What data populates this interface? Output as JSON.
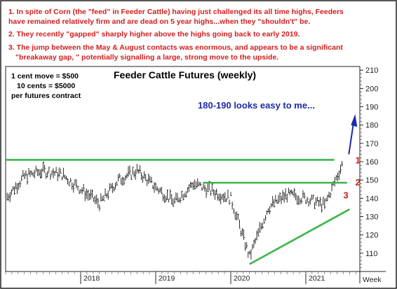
{
  "notes": [
    "1. In spite of Corn (the \"feed\" in Feeder Cattle) having just challenged its all time highs, Feeders",
    "have remained relatively firm and are dead on 5 year highs...when they \"shouldn't\" be.",
    "2. They recently \"gapped\" sharply higher above the highs going back to early 2019.",
    "3. The jump between the May & August contacts was enormous, and appears to be a significant",
    "\"breakaway gap, \" potentially signalling a large, strong move to the upside."
  ],
  "contract_info": [
    "1 cent move = $500",
    "10 cents = $5000",
    "per futures contract"
  ],
  "colors": {
    "note_text": "#d41c1c",
    "annotation_blue": "#1a2aa8",
    "trendline_green": "#3cb54a",
    "marker_red": "#c81e1e",
    "frame": "#222222"
  },
  "chart_data": {
    "type": "line",
    "title": "Feeder Cattle Futures (weekly)",
    "x_tick_labels": [
      "2018",
      "2019",
      "2020",
      "2021"
    ],
    "x_unit_label": "Week",
    "y_ticks": [
      110,
      120,
      130,
      140,
      150,
      160,
      170,
      180,
      190,
      200,
      210
    ],
    "ylim": [
      100,
      212
    ],
    "grid": false,
    "series": [
      {
        "x": [
          "2017-01",
          "2017-04",
          "2017-07",
          "2017-10",
          "2018-01",
          "2018-04",
          "2018-07",
          "2018-10",
          "2019-01",
          "2019-04",
          "2019-07",
          "2019-10",
          "2020-01",
          "2020-04",
          "2020-07",
          "2020-10",
          "2021-01",
          "2021-04",
          "2021-07"
        ],
        "values": [
          140,
          152,
          155,
          153,
          145,
          137,
          150,
          155,
          146,
          138,
          148,
          144,
          140,
          108,
          135,
          142,
          140,
          136,
          160
        ]
      }
    ],
    "annotations": {
      "target_text": "180-190 looks easy to me...",
      "marker_1": "1",
      "marker_2": "2",
      "marker_3": "3",
      "resistance_level_upper": 161,
      "resistance_level_lower": 148.5,
      "support_trendline": {
        "start": [
          "2020-04",
          104
        ],
        "end": [
          "2021-08",
          134
        ]
      }
    }
  }
}
